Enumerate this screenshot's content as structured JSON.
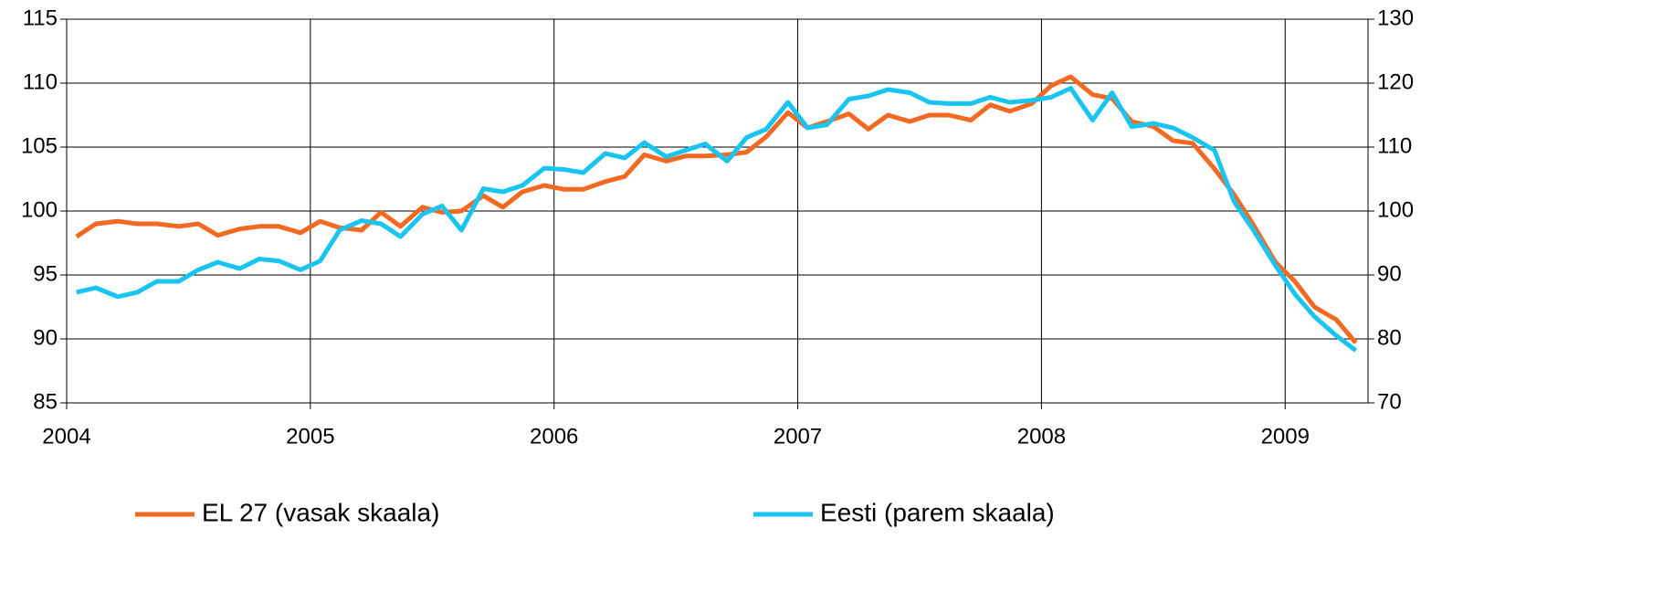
{
  "chart_data": {
    "type": "line",
    "x": [
      2004.04,
      2004.12,
      2004.21,
      2004.29,
      2004.37,
      2004.46,
      2004.54,
      2004.62,
      2004.71,
      2004.79,
      2004.87,
      2004.96,
      2005.04,
      2005.12,
      2005.21,
      2005.29,
      2005.37,
      2005.46,
      2005.54,
      2005.62,
      2005.71,
      2005.79,
      2005.87,
      2005.96,
      2006.04,
      2006.12,
      2006.21,
      2006.29,
      2006.37,
      2006.46,
      2006.54,
      2006.62,
      2006.71,
      2006.79,
      2006.87,
      2006.96,
      2007.04,
      2007.12,
      2007.21,
      2007.29,
      2007.37,
      2007.46,
      2007.54,
      2007.62,
      2007.71,
      2007.79,
      2007.87,
      2007.96,
      2008.04,
      2008.12,
      2008.21,
      2008.29,
      2008.37,
      2008.46,
      2008.54,
      2008.62,
      2008.71,
      2008.79,
      2008.87,
      2008.96,
      2009.04,
      2009.12,
      2009.21,
      2009.29
    ],
    "series": [
      {
        "name": "EL 27 (vasak skaala)",
        "color": "#f26a21",
        "values": [
          98.0,
          99.0,
          99.2,
          99.0,
          99.0,
          98.8,
          99.0,
          98.1,
          98.6,
          98.8,
          98.8,
          98.3,
          99.2,
          98.7,
          98.5,
          99.9,
          98.8,
          100.3,
          99.9,
          100.0,
          101.2,
          100.3,
          101.5,
          102.0,
          101.7,
          101.7,
          102.3,
          102.7,
          104.4,
          103.9,
          104.3,
          104.3,
          104.4,
          104.6,
          105.8,
          107.7,
          106.5,
          107.0,
          107.6,
          106.4,
          107.5,
          107.0,
          107.5,
          107.5,
          107.1,
          108.3,
          107.8,
          108.4,
          109.8,
          110.5,
          109.1,
          108.8,
          107.0,
          106.6,
          105.5,
          105.3,
          103.3,
          101.3,
          98.9,
          96.0,
          94.5,
          92.5,
          91.5,
          89.7
        ]
      },
      {
        "name": "Eesti (parem skaala)",
        "color": "#1ac4f0",
        "axis": "y2",
        "values": [
          87.3,
          88.0,
          86.6,
          87.3,
          89.0,
          89.0,
          90.8,
          92.0,
          91.0,
          92.5,
          92.2,
          90.8,
          92.2,
          97.0,
          98.5,
          98.0,
          96.0,
          99.5,
          100.8,
          97.0,
          103.5,
          103.0,
          104.0,
          106.7,
          106.5,
          106.0,
          109.0,
          108.3,
          110.7,
          108.5,
          109.5,
          110.5,
          107.8,
          111.5,
          112.8,
          117.0,
          113.0,
          113.5,
          117.5,
          118.0,
          119.0,
          118.5,
          117.0,
          116.8,
          116.8,
          117.8,
          117.0,
          117.3,
          117.8,
          119.2,
          114.2,
          118.5,
          113.2,
          113.7,
          113.0,
          111.5,
          109.5,
          101.5,
          97.0,
          91.5,
          87.0,
          83.5,
          80.5,
          78.2
        ]
      }
    ],
    "xlim": [
      2004,
      2009.34
    ],
    "xticks": [
      2004,
      2005,
      2006,
      2007,
      2008,
      2009
    ],
    "ylim": [
      85,
      115
    ],
    "yticks": [
      85,
      90,
      95,
      100,
      105,
      110,
      115
    ],
    "y2lim": [
      70,
      130
    ],
    "y2ticks": [
      70,
      80,
      90,
      100,
      110,
      120,
      130
    ],
    "grid": true,
    "legend": "bottom"
  }
}
